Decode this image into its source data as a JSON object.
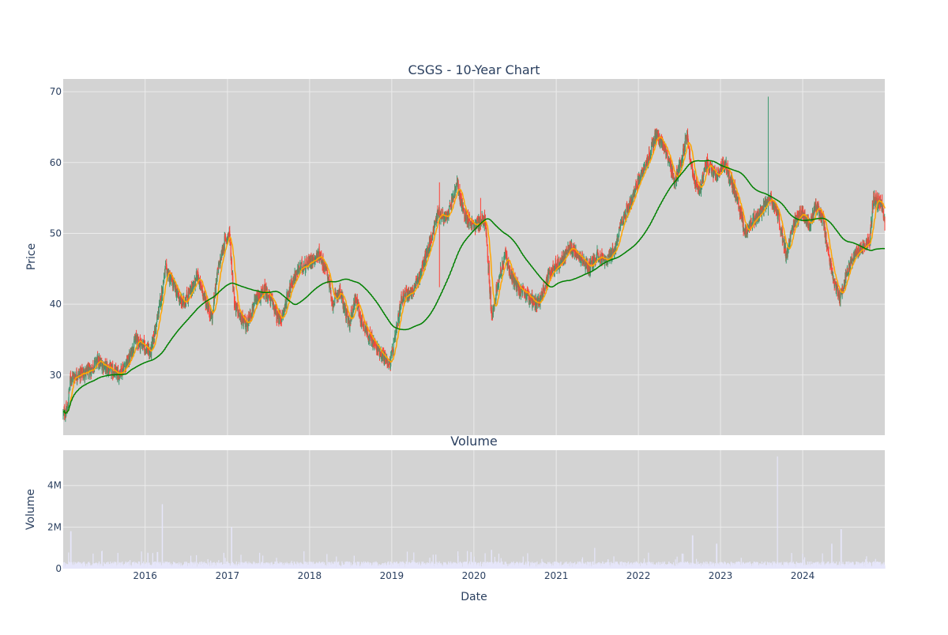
{
  "colors": {
    "plot_bg": "#d3d3d3",
    "grid": "#ebebeb",
    "up": "#3d9970",
    "down": "#ff4136",
    "ma_short": "#ffa500",
    "ma_long": "#008000",
    "volume": "#e6e6fa",
    "text": "#2a3f5f"
  },
  "chart_data": [
    {
      "type": "candlestick",
      "title": "CSGS - 10-Year Chart",
      "ylabel": "Price",
      "xlim": [
        "2015-01-02",
        "2024-12-31"
      ],
      "ylim": [
        21.5,
        71.8
      ],
      "yticks": [
        30,
        40,
        50,
        60,
        70
      ],
      "grid": true,
      "legend": "none",
      "price_anchors": [
        [
          "2015-01-02",
          24.5
        ],
        [
          "2015-01-20",
          25
        ],
        [
          "2015-02-03",
          29.5
        ],
        [
          "2015-03-01",
          30
        ],
        [
          "2015-05-01",
          30.5
        ],
        [
          "2015-06-01",
          32
        ],
        [
          "2015-07-15",
          31
        ],
        [
          "2015-09-01",
          30
        ],
        [
          "2015-10-20",
          32
        ],
        [
          "2015-11-20",
          35
        ],
        [
          "2015-12-31",
          34
        ],
        [
          "2016-01-25",
          33
        ],
        [
          "2016-02-25",
          38
        ],
        [
          "2016-04-01",
          45
        ],
        [
          "2016-05-01",
          43
        ],
        [
          "2016-06-15",
          40
        ],
        [
          "2016-07-25",
          42
        ],
        [
          "2016-08-20",
          44
        ],
        [
          "2016-09-20",
          41
        ],
        [
          "2016-10-25",
          38
        ],
        [
          "2016-11-15",
          44
        ],
        [
          "2016-12-20",
          49
        ],
        [
          "2017-01-10",
          50
        ],
        [
          "2017-02-01",
          40
        ],
        [
          "2017-03-01",
          38
        ],
        [
          "2017-03-25",
          37
        ],
        [
          "2017-05-01",
          40
        ],
        [
          "2017-06-15",
          42
        ],
        [
          "2017-07-25",
          40
        ],
        [
          "2017-08-10",
          38
        ],
        [
          "2017-09-01",
          38
        ],
        [
          "2017-10-01",
          42
        ],
        [
          "2017-11-15",
          45
        ],
        [
          "2017-12-31",
          46
        ],
        [
          "2018-02-15",
          47
        ],
        [
          "2018-03-25",
          44
        ],
        [
          "2018-04-10",
          40
        ],
        [
          "2018-05-15",
          42
        ],
        [
          "2018-06-25",
          37
        ],
        [
          "2018-07-25",
          41
        ],
        [
          "2018-08-15",
          38
        ],
        [
          "2018-10-01",
          35
        ],
        [
          "2018-11-15",
          33
        ],
        [
          "2018-12-24",
          31.5
        ],
        [
          "2019-01-15",
          35
        ],
        [
          "2019-02-15",
          41
        ],
        [
          "2019-04-10",
          42
        ],
        [
          "2019-05-15",
          45
        ],
        [
          "2019-06-15",
          48
        ],
        [
          "2019-07-25",
          53
        ],
        [
          "2019-09-01",
          52
        ],
        [
          "2019-10-20",
          57
        ],
        [
          "2019-11-15",
          53
        ],
        [
          "2019-12-31",
          51
        ],
        [
          "2020-02-20",
          52
        ],
        [
          "2020-03-20",
          38
        ],
        [
          "2020-04-15",
          43
        ],
        [
          "2020-05-20",
          47
        ],
        [
          "2020-06-15",
          44
        ],
        [
          "2020-07-20",
          42
        ],
        [
          "2020-09-01",
          41
        ],
        [
          "2020-10-15",
          40
        ],
        [
          "2020-11-15",
          43
        ],
        [
          "2020-12-15",
          45
        ],
        [
          "2021-01-25",
          46
        ],
        [
          "2021-03-01",
          48
        ],
        [
          "2021-04-15",
          47
        ],
        [
          "2021-05-25",
          45
        ],
        [
          "2021-07-01",
          47
        ],
        [
          "2021-08-15",
          46
        ],
        [
          "2021-09-20",
          48
        ],
        [
          "2021-10-25",
          52
        ],
        [
          "2021-12-05",
          55
        ],
        [
          "2022-01-10",
          58
        ],
        [
          "2022-02-20",
          61
        ],
        [
          "2022-03-20",
          64
        ],
        [
          "2022-05-01",
          62
        ],
        [
          "2022-06-10",
          57
        ],
        [
          "2022-07-15",
          61
        ],
        [
          "2022-08-05",
          64
        ],
        [
          "2022-09-01",
          58
        ],
        [
          "2022-10-01",
          56
        ],
        [
          "2022-10-30",
          60
        ],
        [
          "2022-12-10",
          58
        ],
        [
          "2023-01-20",
          60
        ],
        [
          "2023-03-15",
          55
        ],
        [
          "2023-04-20",
          50
        ],
        [
          "2023-05-25",
          52
        ],
        [
          "2023-06-30",
          53
        ],
        [
          "2023-08-10",
          55
        ],
        [
          "2023-09-10",
          53
        ],
        [
          "2023-10-20",
          47
        ],
        [
          "2023-11-30",
          52
        ],
        [
          "2023-12-31",
          53
        ],
        [
          "2024-02-01",
          51
        ],
        [
          "2024-03-01",
          54
        ],
        [
          "2024-04-01",
          52
        ],
        [
          "2024-04-20",
          48
        ],
        [
          "2024-05-20",
          43
        ],
        [
          "2024-06-15",
          41
        ],
        [
          "2024-07-20",
          45
        ],
        [
          "2024-08-20",
          47
        ],
        [
          "2024-09-15",
          48
        ],
        [
          "2024-10-25",
          49
        ],
        [
          "2024-11-10",
          55
        ],
        [
          "2024-12-20",
          54
        ],
        [
          "2024-12-31",
          51
        ]
      ],
      "spikes": [
        [
          "2019-08-01",
          57.2,
          42.4
        ],
        [
          "2020-02-01",
          55.0,
          50.5
        ],
        [
          "2023-08-01",
          69.3,
          52.5
        ]
      ],
      "moving_averages": [
        {
          "window": 20,
          "color_key": "ma_short"
        },
        {
          "window": 200,
          "color_key": "ma_long"
        }
      ]
    },
    {
      "type": "bar",
      "title": "Volume",
      "ylabel": "Volume",
      "xlabel": "Date",
      "ylim": [
        0,
        5700000
      ],
      "yticks": [
        0,
        2000000,
        4000000
      ],
      "ytick_labels": [
        "0",
        "2M",
        "4M"
      ],
      "xtick_labels": [
        "2016",
        "2017",
        "2018",
        "2019",
        "2020",
        "2021",
        "2022",
        "2023",
        "2024"
      ],
      "volume_baseline": 250000,
      "volume_spikes": [
        [
          "2015-02-05",
          1800000
        ],
        [
          "2016-03-18",
          3100000
        ],
        [
          "2016-02-25",
          800000
        ],
        [
          "2017-01-20",
          2000000
        ],
        [
          "2019-12-20",
          800000
        ],
        [
          "2020-03-20",
          900000
        ],
        [
          "2021-06-20",
          1000000
        ],
        [
          "2022-08-30",
          1600000
        ],
        [
          "2022-12-15",
          1200000
        ],
        [
          "2023-09-10",
          5400000
        ],
        [
          "2024-06-20",
          1900000
        ],
        [
          "2024-05-10",
          1200000
        ]
      ]
    }
  ]
}
